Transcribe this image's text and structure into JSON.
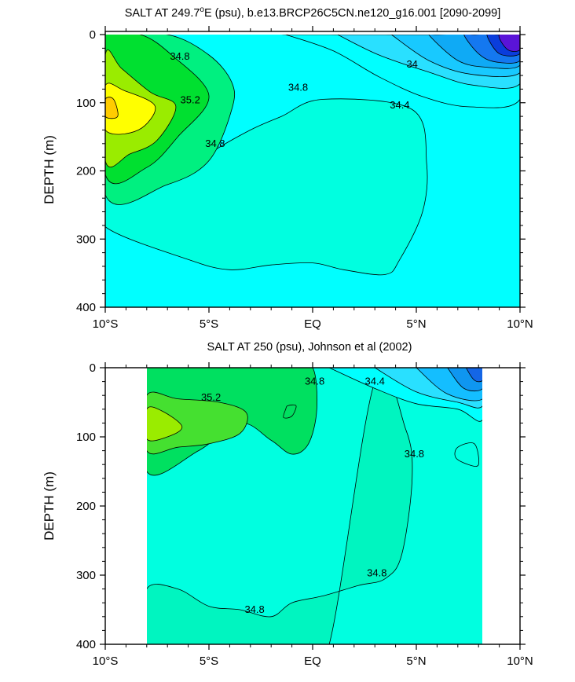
{
  "chart_data": [
    {
      "type": "contour",
      "title": "SALT AT 249.7°E (psu), b.e13.BRCP26C5CN.ne120_g16.001 [2090-2099]",
      "title_parts": {
        "prefix": "SALT AT 249.7",
        "sup": "o",
        "suffix": "E (psu), b.e13.BRCP26C5CN.ne120_g16.001 [2090-2099]"
      },
      "xlabel": "",
      "ylabel": "DEPTH (m)",
      "xlim": [
        -10,
        10
      ],
      "ylim": [
        400,
        0
      ],
      "y_inverted": true,
      "x_ticks": [
        -10,
        -5,
        0,
        5,
        10
      ],
      "x_tick_labels": [
        "10°S",
        "5°S",
        "EQ",
        "5°N",
        "10°N"
      ],
      "y_ticks": [
        0,
        100,
        200,
        300,
        400
      ],
      "y_tick_labels": [
        "0",
        "100",
        "200",
        "300",
        "400"
      ],
      "contour_labels": [
        {
          "text": "34.8",
          "x": -6.4,
          "y": 32
        },
        {
          "text": "34.8",
          "x": -4.7,
          "y": 160
        },
        {
          "text": "35.2",
          "x": -5.9,
          "y": 96
        },
        {
          "text": "34.8",
          "x": -0.7,
          "y": 78
        },
        {
          "text": "34",
          "x": 4.8,
          "y": 44
        },
        {
          "text": "34.4",
          "x": 4.2,
          "y": 104
        }
      ],
      "regions": [
        {
          "level": "34.8",
          "color": "#00FFE0",
          "x": [
            -10,
            -7,
            -5,
            -3,
            -1.5,
            0.5,
            4.8,
            5.5,
            5.3,
            4.2,
            3.5,
            1.5,
            0,
            -2,
            -4,
            -6,
            -10
          ],
          "y": [
            235,
            220,
            175,
            140,
            120,
            95,
            110,
            190,
            260,
            330,
            352,
            345,
            335,
            338,
            345,
            330,
            282
          ]
        },
        {
          "level": "35.0",
          "color": "#00F080",
          "x": [
            -10,
            -7,
            -5,
            -3.9,
            -3.9,
            -5,
            -7,
            -10
          ],
          "y": [
            0,
            0,
            30,
            70,
            110,
            185,
            220,
            235
          ]
        },
        {
          "level": "35.2",
          "color": "#00E030",
          "x": [
            -10,
            -8.3,
            -6.8,
            -5,
            -6.5,
            -8,
            -10
          ],
          "y": [
            0,
            0,
            30,
            90,
            150,
            195,
            205
          ]
        },
        {
          "level": "35.4",
          "color": "#9AEC00",
          "x": [
            -10,
            -9.2,
            -7.8,
            -6.6,
            -7.5,
            -8.8,
            -10
          ],
          "y": [
            30,
            50,
            85,
            105,
            155,
            175,
            185
          ]
        },
        {
          "level": "35.6",
          "color": "#FFFF00",
          "x": [
            -10,
            -9.1,
            -7.6,
            -8.4,
            -10
          ],
          "y": [
            75,
            82,
            105,
            140,
            140
          ]
        },
        {
          "level": "35.7",
          "color": "#FFCC00",
          "x": [
            -10,
            -9.6,
            -9.4,
            -10
          ],
          "y": [
            95,
            95,
            120,
            120
          ]
        },
        {
          "level": "34.6",
          "color": "#00FFFF",
          "x": [
            -1.3,
            1.0,
            3.2,
            5.4,
            7.6,
            10,
            10,
            8.7,
            7.4,
            5.6,
            3.8,
            1.2,
            -1.3
          ],
          "y": [
            0,
            24,
            62,
            92,
            106,
            95,
            0,
            0,
            0,
            0,
            0,
            0,
            0
          ]
        },
        {
          "level": "34.4",
          "color": "#29E0FF",
          "x": [
            1.2,
            3.2,
            5.6,
            7.7,
            10,
            10,
            9.0,
            7.4,
            5.7,
            1.2
          ],
          "y": [
            0,
            30,
            55,
            74,
            72,
            0,
            0,
            0,
            0,
            0
          ]
        },
        {
          "level": "34.2",
          "color": "#18C9FF",
          "x": [
            3.8,
            5.6,
            7.6,
            10,
            10,
            8.4,
            3.8
          ],
          "y": [
            0,
            38,
            58,
            56,
            0,
            0,
            0
          ]
        },
        {
          "level": "34.0",
          "color": "#0FAAF5",
          "x": [
            5.6,
            7.0,
            8.4,
            10,
            10,
            6.0
          ],
          "y": [
            0,
            38,
            48,
            45,
            0,
            0
          ]
        },
        {
          "level": "33.8",
          "color": "#1478F0",
          "x": [
            7.3,
            8.0,
            8.8,
            10,
            10,
            7.8
          ],
          "y": [
            0,
            28,
            40,
            38,
            0,
            0
          ]
        },
        {
          "level": "33.6",
          "color": "#0A3DDC",
          "x": [
            8.4,
            9.0,
            10,
            10,
            8.9
          ],
          "y": [
            0,
            28,
            28,
            0,
            0
          ]
        },
        {
          "level": "33.4",
          "color": "#5A14D8",
          "x": [
            9.0,
            9.4,
            10,
            10
          ],
          "y": [
            0,
            22,
            22,
            0
          ]
        }
      ]
    },
    {
      "type": "contour",
      "title": "SALT AT 250 (psu), Johnson et al (2002)",
      "xlabel": "",
      "ylabel": "DEPTH (m)",
      "xlim": [
        -10,
        10
      ],
      "ylim": [
        400,
        0
      ],
      "y_inverted": true,
      "x_ticks": [
        -10,
        -5,
        0,
        5,
        10
      ],
      "x_tick_labels": [
        "10°S",
        "5°S",
        "EQ",
        "5°N",
        "10°N"
      ],
      "y_ticks": [
        0,
        100,
        200,
        300,
        400
      ],
      "y_tick_labels": [
        "0",
        "100",
        "200",
        "300",
        "400"
      ],
      "data_x_range": [
        -8,
        8.2
      ],
      "contour_labels": [
        {
          "text": "34.8",
          "x": 0.1,
          "y": 20
        },
        {
          "text": "34.4",
          "x": 3.0,
          "y": 20
        },
        {
          "text": "35.2",
          "x": -4.9,
          "y": 43
        },
        {
          "text": "34.8",
          "x": 4.9,
          "y": 125
        },
        {
          "text": "34.8",
          "x": 3.1,
          "y": 297
        },
        {
          "text": "34.8",
          "x": -2.8,
          "y": 350
        }
      ],
      "regions": [
        {
          "level": "34.8",
          "color": "#00F5C0",
          "x": [
            -8,
            -6,
            -4,
            -2,
            -0.5,
            0.8,
            3.0,
            4.5,
            4.8,
            4.3,
            3.5,
            2.2,
            0.5,
            -1.0,
            -2.0,
            -3.5,
            -5.0,
            -6.5,
            -8
          ],
          "y": [
            400,
            400,
            400,
            400,
            400,
            400,
            20,
            90,
            160,
            270,
            305,
            315,
            330,
            340,
            360,
            350,
            345,
            320,
            320
          ]
        },
        {
          "level": "34.9",
          "color": "#00E060",
          "x": [
            -8,
            -5.5,
            -3,
            -1.0,
            0,
            0.2,
            -0.2,
            -1.0,
            -2.0,
            -3.5,
            -5.5,
            -8
          ],
          "y": [
            0,
            0,
            0,
            0,
            0,
            60,
            110,
            125,
            105,
            80,
            120,
            150
          ]
        },
        {
          "level": "35.0",
          "color": "#00E060",
          "x": [
            -1.2,
            -0.8,
            -1.0,
            -1.4,
            -1.3
          ],
          "y": [
            55,
            55,
            70,
            72,
            60
          ]
        },
        {
          "level": "35.2",
          "color": "#45E030",
          "x": [
            -8,
            -6.5,
            -4.5,
            -3.2,
            -3.5,
            -5,
            -6.5,
            -8
          ],
          "y": [
            40,
            45,
            50,
            65,
            95,
            110,
            115,
            120
          ]
        },
        {
          "level": "35.4",
          "color": "#9AEC00",
          "x": [
            -8,
            -7.3,
            -6.3,
            -7.0,
            -8
          ],
          "y": [
            60,
            62,
            85,
            100,
            103
          ]
        },
        {
          "level": "34.6",
          "color": "#00FFFF",
          "x": [
            0.8,
            3.0,
            5.0,
            7.0,
            8.2,
            8.2,
            0.8
          ],
          "y": [
            0,
            30,
            52,
            60,
            75,
            0,
            0
          ]
        },
        {
          "level": "34.4",
          "color": "#29E0FF",
          "x": [
            3.0,
            5.0,
            7.0,
            8.2,
            8.2,
            3.0
          ],
          "y": [
            0,
            35,
            50,
            55,
            0,
            0
          ]
        },
        {
          "level": "34.2",
          "color": "#14BEFF",
          "x": [
            5.0,
            6.5,
            8.2,
            8.2,
            5.0
          ],
          "y": [
            0,
            38,
            45,
            0,
            0
          ]
        },
        {
          "level": "34.0",
          "color": "#0F96F0",
          "x": [
            6.5,
            7.3,
            8.2,
            8.2,
            6.5
          ],
          "y": [
            0,
            30,
            30,
            0,
            0
          ]
        },
        {
          "level": "33.8",
          "color": "#1466E6",
          "x": [
            7.4,
            7.8,
            8.2,
            8.2,
            7.5
          ],
          "y": [
            0,
            18,
            18,
            0,
            0
          ]
        },
        {
          "level": "34.8",
          "color": "#00FFE0",
          "x": [
            7.0,
            7.8,
            8.0,
            7.5,
            6.9
          ],
          "y": [
            115,
            110,
            140,
            140,
            130
          ]
        }
      ]
    }
  ]
}
